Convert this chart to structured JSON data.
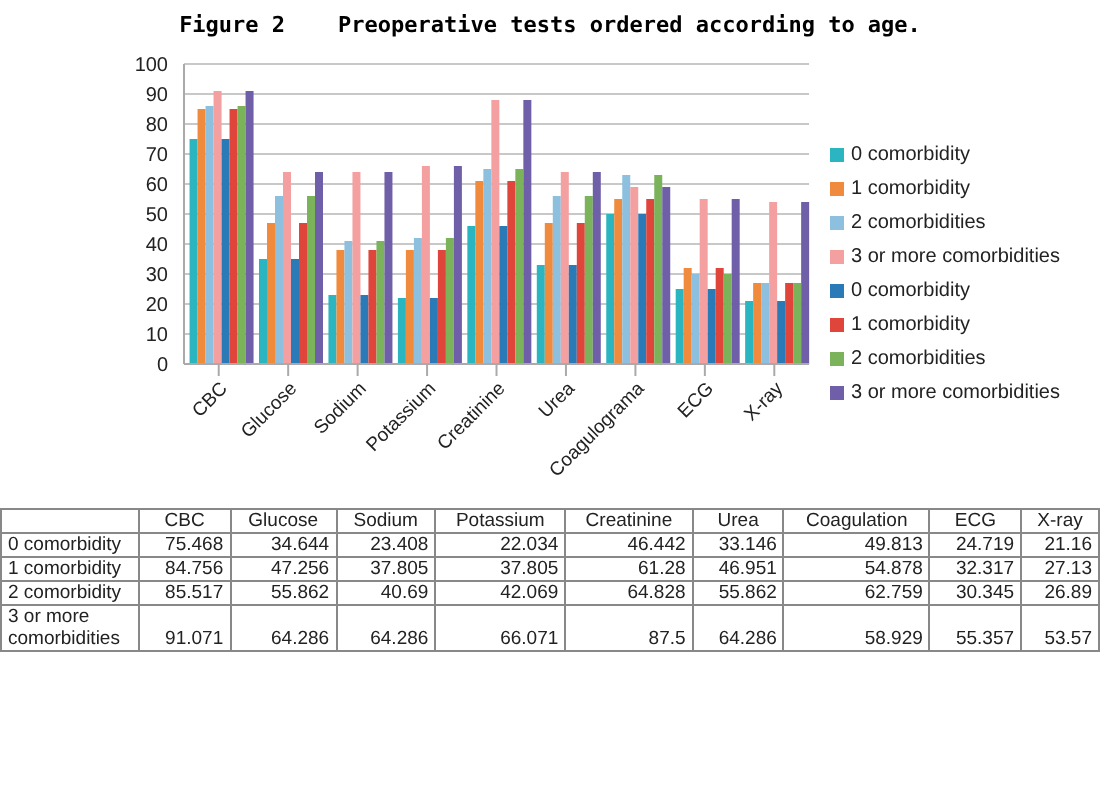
{
  "chart_data": [
    {
      "type": "bar",
      "title": "Figure 2    Preoperative tests ordered according to age.",
      "categories": [
        "CBC",
        "Glucose",
        "Sodium",
        "Potassium",
        "Creatinine",
        "Urea",
        "Coagulograma",
        "ECG",
        "X-ray"
      ],
      "series": [
        {
          "name": "0 comorbidity",
          "color": "#2bb5c0",
          "values": [
            75,
            35,
            23,
            22,
            46,
            33,
            50,
            25,
            21
          ]
        },
        {
          "name": "1 comorbidity",
          "color": "#f08a3c",
          "values": [
            85,
            47,
            38,
            38,
            61,
            47,
            55,
            32,
            27
          ]
        },
        {
          "name": "2 comorbidities",
          "color": "#8cc0de",
          "values": [
            86,
            56,
            41,
            42,
            65,
            56,
            63,
            30,
            27
          ]
        },
        {
          "name": "3 or more comorbidities",
          "color": "#f4a0a0",
          "values": [
            91,
            64,
            64,
            66,
            88,
            64,
            59,
            55,
            54
          ]
        },
        {
          "name": "0 comorbidity",
          "color": "#2a7ab8",
          "values": [
            75,
            35,
            23,
            22,
            46,
            33,
            50,
            25,
            21
          ]
        },
        {
          "name": "1 comorbidity",
          "color": "#e0453c",
          "values": [
            85,
            47,
            38,
            38,
            61,
            47,
            55,
            32,
            27
          ]
        },
        {
          "name": "2 comorbidities",
          "color": "#7ab35a",
          "values": [
            86,
            56,
            41,
            42,
            65,
            56,
            63,
            30,
            27
          ]
        },
        {
          "name": "3 or more comorbidities",
          "color": "#6f5fa8",
          "values": [
            91,
            64,
            64,
            66,
            88,
            64,
            59,
            55,
            54
          ]
        }
      ],
      "ylim": [
        0,
        100
      ],
      "yticks": [
        0,
        10,
        20,
        30,
        40,
        50,
        60,
        70,
        80,
        90,
        100
      ],
      "grid": "y",
      "legend": "right"
    },
    {
      "type": "other",
      "categories": [
        "CBC",
        "Glucose",
        "Sodium",
        "Potassium",
        "Creatinine",
        "Urea",
        "Coagulation",
        "ECG",
        "X-ray"
      ],
      "series": [
        {
          "name": "0 comorbidity",
          "values": [
            75.468,
            34.644,
            23.408,
            22.034,
            46.442,
            33.146,
            49.813,
            24.719,
            21.16
          ]
        },
        {
          "name": "1 comorbidity",
          "values": [
            84.756,
            47.256,
            37.805,
            37.805,
            61.28,
            46.951,
            54.878,
            32.317,
            27.13
          ]
        },
        {
          "name": "2 comorbidity",
          "values": [
            85.517,
            55.862,
            40.69,
            42.069,
            64.828,
            55.862,
            62.759,
            30.345,
            26.89
          ]
        },
        {
          "name": "3 or more comorbidities",
          "values": [
            91.071,
            64.286,
            64.286,
            66.071,
            87.5,
            64.286,
            58.929,
            55.357,
            53.57
          ]
        }
      ],
      "data_labels": true
    }
  ]
}
